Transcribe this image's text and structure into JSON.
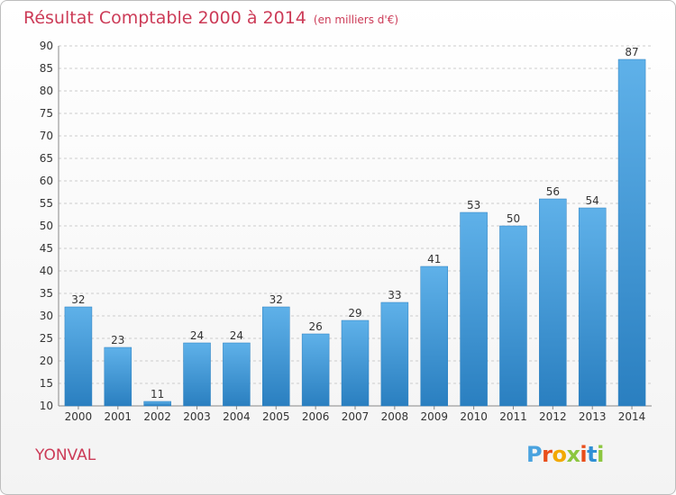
{
  "header": {
    "title": "Résultat Comptable 2000 à 2014",
    "subtitle": "(en milliers d'€)"
  },
  "footer": {
    "commune": "YONVAL",
    "brand": "Proxiti",
    "brand_colors": [
      "#4aa3df",
      "#e94e1b",
      "#f2a900",
      "#8cc63f",
      "#e94e1b",
      "#2f8fd4",
      "#8cc63f"
    ]
  },
  "colors": {
    "accent": "#cc3b57",
    "bar_top": "#5fb1e9",
    "bar_bottom": "#2a7fc0",
    "grid": "#cccccc"
  },
  "chart_data": {
    "type": "bar",
    "title": "Résultat Comptable 2000 à 2014",
    "subtitle": "(en milliers d'€)",
    "categories": [
      "2000",
      "2001",
      "2002",
      "2003",
      "2004",
      "2005",
      "2006",
      "2007",
      "2008",
      "2009",
      "2010",
      "2011",
      "2012",
      "2013",
      "2014"
    ],
    "values": [
      32,
      23,
      11,
      24,
      24,
      32,
      26,
      29,
      33,
      41,
      53,
      50,
      56,
      54,
      87
    ],
    "ylim": [
      10,
      90
    ],
    "yticks": [
      10,
      15,
      20,
      25,
      30,
      35,
      40,
      45,
      50,
      55,
      60,
      65,
      70,
      75,
      80,
      85,
      90
    ],
    "grid": true,
    "data_labels": true
  }
}
